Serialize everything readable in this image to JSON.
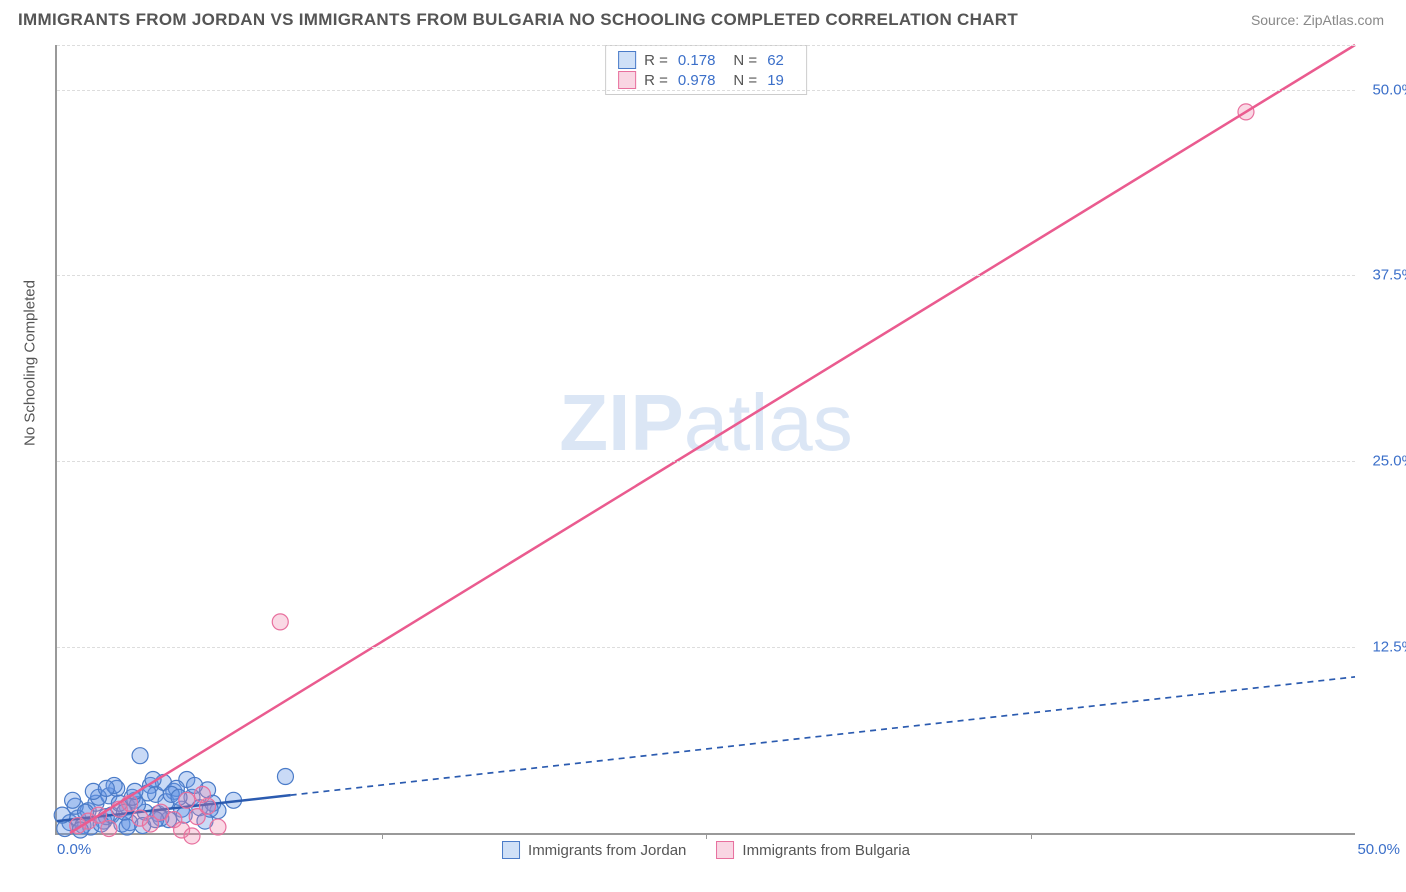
{
  "title": "IMMIGRANTS FROM JORDAN VS IMMIGRANTS FROM BULGARIA NO SCHOOLING COMPLETED CORRELATION CHART",
  "source": "Source: ZipAtlas.com",
  "y_axis_label": "No Schooling Completed",
  "watermark_a": "ZIP",
  "watermark_b": "atlas",
  "chart": {
    "type": "scatter",
    "xlim": [
      0,
      50
    ],
    "ylim": [
      0,
      53
    ],
    "x_ticks_major": [
      0,
      50
    ],
    "x_ticks_minor": [
      12.5,
      25,
      37.5
    ],
    "y_ticks": [
      12.5,
      25,
      37.5,
      50
    ],
    "y_tick_labels": [
      "12.5%",
      "25.0%",
      "37.5%",
      "50.0%"
    ],
    "x_tick_label_left": "0.0%",
    "x_tick_label_right": "50.0%",
    "grid_color": "#dddddd",
    "axis_color": "#999999",
    "background": "#ffffff",
    "series": [
      {
        "name": "Immigrants from Jordan",
        "color_fill": "rgba(100,150,230,0.35)",
        "color_stroke": "#4a7bc8",
        "swatch_fill": "#cfe0f7",
        "swatch_stroke": "#4a7bc8",
        "R": "0.178",
        "N": "62",
        "marker_r": 8,
        "trend": {
          "x1": 0,
          "y1": 0.8,
          "x2": 50,
          "y2": 10.5,
          "solid_until_x": 9,
          "color": "#2b5bb0",
          "width": 2.5,
          "dash": "6 5"
        },
        "points": [
          [
            0.5,
            0.7
          ],
          [
            0.8,
            1.0
          ],
          [
            1.0,
            0.5
          ],
          [
            1.2,
            1.5
          ],
          [
            1.5,
            2.0
          ],
          [
            1.8,
            0.8
          ],
          [
            2.0,
            2.5
          ],
          [
            2.1,
            1.2
          ],
          [
            2.3,
            3.0
          ],
          [
            2.5,
            0.6
          ],
          [
            2.7,
            1.8
          ],
          [
            3.0,
            2.2
          ],
          [
            3.2,
            5.2
          ],
          [
            3.4,
            1.4
          ],
          [
            3.6,
            3.2
          ],
          [
            3.8,
            2.6
          ],
          [
            4.1,
            3.4
          ],
          [
            4.3,
            0.9
          ],
          [
            4.5,
            2.8
          ],
          [
            4.8,
            1.6
          ],
          [
            5.0,
            3.6
          ],
          [
            0.3,
            0.3
          ],
          [
            0.7,
            1.8
          ],
          [
            1.3,
            0.4
          ],
          [
            1.6,
            2.4
          ],
          [
            1.9,
            1.1
          ],
          [
            2.4,
            2.0
          ],
          [
            2.8,
            0.7
          ],
          [
            3.1,
            1.9
          ],
          [
            3.5,
            2.7
          ],
          [
            3.9,
            1.3
          ],
          [
            4.2,
            2.1
          ],
          [
            4.6,
            3.0
          ],
          [
            5.2,
            2.4
          ],
          [
            5.5,
            1.7
          ],
          [
            5.8,
            2.9
          ],
          [
            6.2,
            1.5
          ],
          [
            6.8,
            2.2
          ],
          [
            8.8,
            3.8
          ],
          [
            0.2,
            1.2
          ],
          [
            0.9,
            0.2
          ],
          [
            1.4,
            2.8
          ],
          [
            1.7,
            0.6
          ],
          [
            2.2,
            3.2
          ],
          [
            2.6,
            1.4
          ],
          [
            2.9,
            2.4
          ],
          [
            3.3,
            0.5
          ],
          [
            3.7,
            3.6
          ],
          [
            4.0,
            1.0
          ],
          [
            4.4,
            2.6
          ],
          [
            4.9,
            1.2
          ],
          [
            5.3,
            3.2
          ],
          [
            5.7,
            0.8
          ],
          [
            6.0,
            2.0
          ],
          [
            0.6,
            2.2
          ],
          [
            1.1,
            1.4
          ],
          [
            1.9,
            3.0
          ],
          [
            2.7,
            0.4
          ],
          [
            3.0,
            2.8
          ],
          [
            3.8,
            0.9
          ],
          [
            4.7,
            2.4
          ],
          [
            5.9,
            1.6
          ]
        ]
      },
      {
        "name": "Immigrants from Bulgaria",
        "color_fill": "rgba(240,130,170,0.3)",
        "color_stroke": "#e8709e",
        "swatch_fill": "#f9d6e3",
        "swatch_stroke": "#e8709e",
        "R": "0.978",
        "N": "19",
        "marker_r": 8,
        "trend": {
          "x1": 0.5,
          "y1": 0,
          "x2": 50,
          "y2": 53,
          "solid_until_x": 50,
          "color": "#ea5b8f",
          "width": 2.5,
          "dash": null
        },
        "points": [
          [
            0.8,
            0.5
          ],
          [
            1.2,
            0.8
          ],
          [
            1.6,
            1.2
          ],
          [
            2.0,
            0.3
          ],
          [
            2.4,
            1.6
          ],
          [
            2.8,
            2.0
          ],
          [
            3.2,
            1.0
          ],
          [
            3.6,
            0.6
          ],
          [
            4.0,
            1.4
          ],
          [
            4.5,
            0.9
          ],
          [
            5.0,
            2.2
          ],
          [
            5.4,
            1.1
          ],
          [
            5.8,
            1.8
          ],
          [
            6.2,
            0.4
          ],
          [
            4.8,
            0.2
          ],
          [
            5.2,
            -0.2
          ],
          [
            5.6,
            2.6
          ],
          [
            8.6,
            14.2
          ],
          [
            45.8,
            48.5
          ]
        ]
      }
    ]
  },
  "legend_bottom": [
    {
      "label": "Immigrants from Jordan",
      "fill": "#cfe0f7",
      "stroke": "#4a7bc8"
    },
    {
      "label": "Immigrants from Bulgaria",
      "fill": "#f9d6e3",
      "stroke": "#e8709e"
    }
  ],
  "legend_box_labels": {
    "R": "R  =",
    "N": "N  ="
  }
}
